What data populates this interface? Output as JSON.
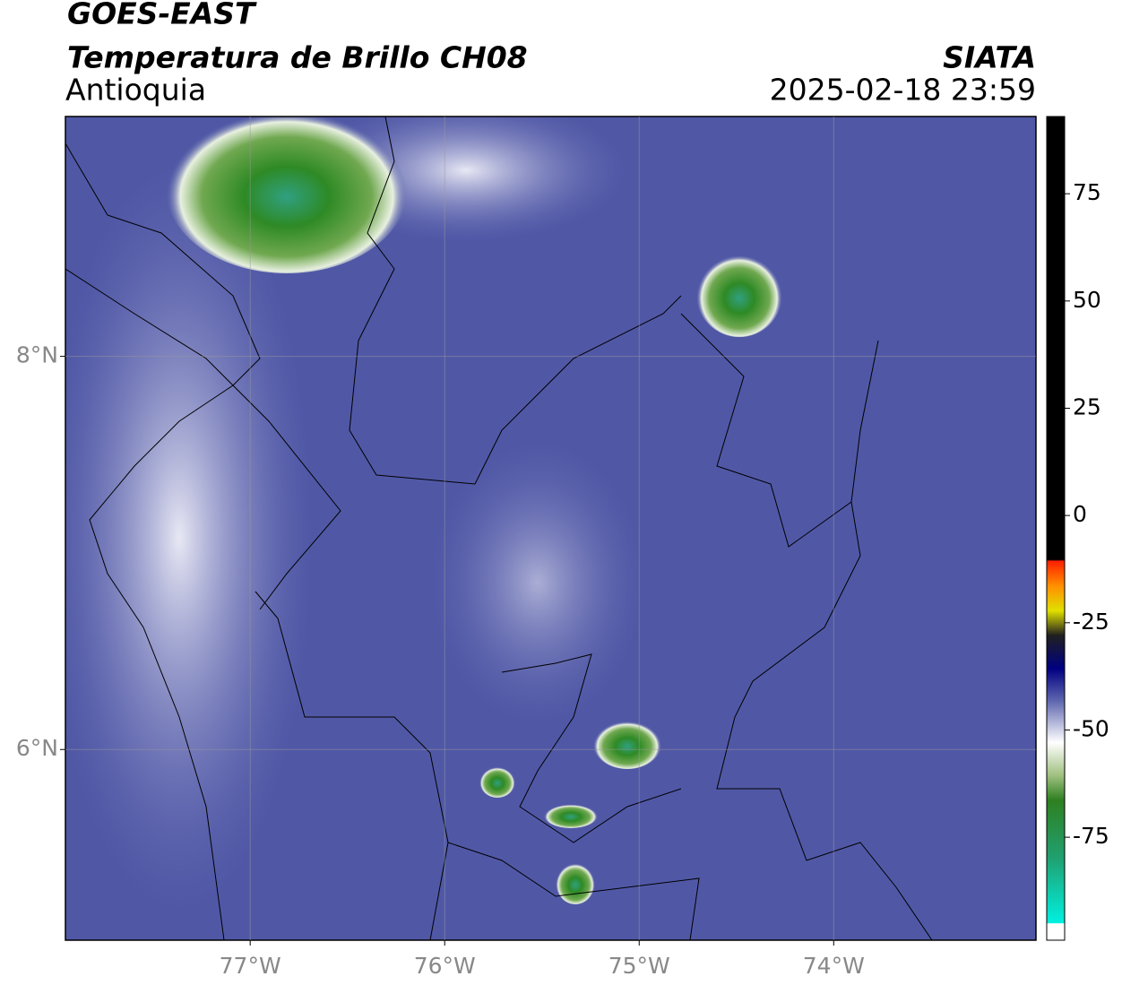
{
  "header": {
    "title": "GOES-EAST",
    "subtitle": "Temperatura de Brillo CH08",
    "region": "Antioquia",
    "source": "SIATA",
    "datetime": "2025-02-18 23:59"
  },
  "map": {
    "xlim": [
      -77.95,
      -72.96
    ],
    "ylim": [
      5.03,
      9.22
    ],
    "xticks": [
      {
        "value": -77,
        "label": "77°W"
      },
      {
        "value": -76,
        "label": "76°W"
      },
      {
        "value": -75,
        "label": "75°W"
      },
      {
        "value": -74,
        "label": "74°W"
      }
    ],
    "yticks": [
      {
        "value": 8,
        "label": "8°N"
      },
      {
        "value": 6,
        "label": "6°N"
      }
    ],
    "grid": true
  },
  "colorbar": {
    "lim": [
      -99,
      93
    ],
    "ticks": [
      -75,
      -50,
      -25,
      0,
      25,
      50,
      75
    ]
  }
}
